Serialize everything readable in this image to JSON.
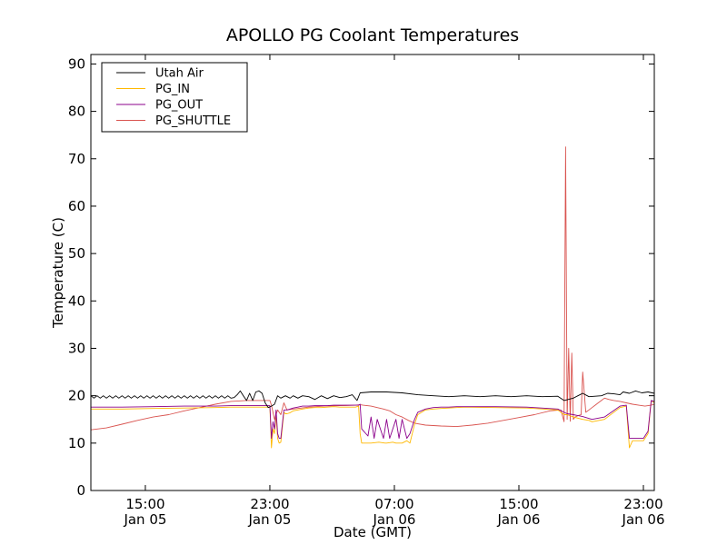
{
  "chart_data": {
    "type": "line",
    "title": "APOLLO PG Coolant Temperatures",
    "xlabel": "Date (GMT)",
    "ylabel": "Temperature (C)",
    "x_unit": "hours since Jan 05 11:30 GMT",
    "xlim": [
      0,
      36.2
    ],
    "ylim": [
      0,
      92
    ],
    "yticks": [
      0,
      10,
      20,
      30,
      40,
      50,
      60,
      70,
      80,
      90
    ],
    "xticks": [
      {
        "x": 3.5,
        "line1": "15:00",
        "line2": "Jan 05"
      },
      {
        "x": 11.5,
        "line1": "23:00",
        "line2": "Jan 05"
      },
      {
        "x": 19.5,
        "line1": "07:00",
        "line2": "Jan 06"
      },
      {
        "x": 27.5,
        "line1": "15:00",
        "line2": "Jan 06"
      },
      {
        "x": 35.5,
        "line1": "23:00",
        "line2": "Jan 06"
      }
    ],
    "legend_position": "top-left",
    "series": [
      {
        "name": "Utah Air",
        "color": "#000000",
        "x": [
          0,
          0.2,
          0.4,
          0.6,
          0.8,
          1.0,
          1.2,
          1.4,
          1.6,
          1.8,
          2.0,
          2.2,
          2.4,
          2.6,
          2.8,
          3.0,
          3.2,
          3.4,
          3.6,
          3.8,
          4.0,
          4.2,
          4.4,
          4.6,
          4.8,
          5.0,
          5.2,
          5.4,
          5.6,
          5.8,
          6.0,
          6.2,
          6.4,
          6.6,
          6.8,
          7.0,
          7.2,
          7.4,
          7.6,
          7.8,
          8.0,
          8.2,
          8.4,
          8.6,
          8.8,
          9.0,
          9.2,
          9.4,
          9.6,
          9.8,
          10.0,
          10.2,
          10.4,
          10.6,
          10.8,
          11.0,
          11.2,
          11.4,
          11.6,
          11.8,
          12.0,
          12.2,
          12.5,
          12.8,
          13.0,
          13.3,
          13.6,
          14.0,
          14.4,
          14.8,
          15.2,
          15.6,
          16.0,
          16.4,
          16.8,
          17.1,
          17.3,
          18.0,
          19.0,
          20.0,
          21.0,
          22.0,
          23.0,
          24.0,
          25.0,
          26.0,
          27.0,
          28.0,
          29.0,
          30.0,
          30.4,
          31.0,
          31.6,
          32.0,
          32.8,
          33.2,
          33.6,
          34.0,
          34.2,
          34.6,
          35.0,
          35.4,
          35.8,
          36.2
        ],
        "values": [
          20.0,
          19.5,
          20.0,
          19.5,
          20.0,
          19.5,
          20.0,
          19.5,
          20.0,
          19.5,
          20.0,
          19.5,
          20.0,
          19.5,
          20.0,
          19.5,
          20.0,
          19.5,
          20.0,
          19.5,
          20.0,
          19.5,
          20.0,
          19.5,
          20.0,
          19.5,
          20.0,
          19.5,
          20.0,
          19.5,
          20.0,
          19.5,
          20.0,
          19.5,
          20.0,
          19.5,
          20.0,
          19.5,
          20.0,
          19.5,
          20.0,
          19.5,
          20.0,
          19.5,
          20.0,
          19.5,
          19.6,
          20.2,
          21.0,
          20.0,
          19.0,
          20.5,
          19.0,
          20.8,
          21.0,
          20.5,
          18.5,
          17.5,
          17.8,
          18.2,
          20.0,
          19.5,
          20.0,
          19.5,
          20.0,
          19.5,
          20.0,
          19.8,
          19.2,
          20.0,
          19.4,
          20.0,
          19.6,
          19.8,
          20.2,
          19.0,
          20.6,
          20.8,
          20.8,
          20.6,
          20.2,
          20.0,
          19.8,
          20.0,
          19.8,
          20.0,
          19.8,
          20.0,
          19.8,
          19.9,
          19.0,
          19.5,
          20.5,
          19.8,
          20.0,
          20.5,
          20.4,
          20.2,
          20.8,
          20.5,
          21.0,
          20.6,
          20.8,
          20.5
        ]
      },
      {
        "name": "PG_IN",
        "color": "#ffb800",
        "x": [
          0,
          2,
          4,
          6,
          8,
          9,
          10,
          10.8,
          11.5,
          11.6,
          11.7,
          11.8,
          11.9,
          12.0,
          12.1,
          12.2,
          12.4,
          12.5,
          12.6,
          12.8,
          13.0,
          13.3,
          13.6,
          14.0,
          14.4,
          14.8,
          15.2,
          15.6,
          16.0,
          16.4,
          16.8,
          17.0,
          17.2,
          17.3,
          17.4,
          18.0,
          18.5,
          18.9,
          19.0,
          19.4,
          19.6,
          20.0,
          20.3,
          20.5,
          20.8,
          21.0,
          21.5,
          22.0,
          22.5,
          23.0,
          23.5,
          24.0,
          26.0,
          28.0,
          30.0,
          30.4,
          30.6,
          31.0,
          31.6,
          32.0,
          32.2,
          33.0,
          34.0,
          34.4,
          34.6,
          34.8,
          35.0,
          35.5,
          35.8,
          36.0,
          36.2
        ],
        "values": [
          17.2,
          17.2,
          17.3,
          17.4,
          17.5,
          17.6,
          17.6,
          17.6,
          17.6,
          9.0,
          13.0,
          12.0,
          16.0,
          11.0,
          10.0,
          10.2,
          16.5,
          16.2,
          16.2,
          16.4,
          16.8,
          17.0,
          17.2,
          17.4,
          17.5,
          17.5,
          17.6,
          17.7,
          17.6,
          17.6,
          17.6,
          17.6,
          17.8,
          12.0,
          10.0,
          10.0,
          10.2,
          10.0,
          10.0,
          10.2,
          10.0,
          10.0,
          10.5,
          10.0,
          14.0,
          16.0,
          17.0,
          17.2,
          17.3,
          17.4,
          17.5,
          17.6,
          17.5,
          17.4,
          17.0,
          16.0,
          16.0,
          15.5,
          15.0,
          14.8,
          14.5,
          15.0,
          17.5,
          17.8,
          9.0,
          10.5,
          10.5,
          10.5,
          12.0,
          19.0,
          18.5
        ]
      },
      {
        "name": "PG_OUT",
        "color": "#8b008b",
        "x": [
          0,
          2,
          4,
          6,
          8,
          9,
          10,
          10.8,
          11.5,
          11.6,
          11.7,
          11.8,
          11.9,
          12.0,
          12.1,
          12.2,
          12.4,
          12.6,
          12.8,
          13.0,
          13.3,
          13.6,
          14.0,
          14.4,
          14.8,
          15.2,
          15.6,
          16.0,
          16.4,
          16.8,
          17.0,
          17.2,
          17.3,
          17.4,
          17.8,
          18.0,
          18.2,
          18.4,
          18.8,
          19.0,
          19.2,
          19.6,
          19.8,
          20.0,
          20.3,
          20.5,
          20.8,
          21.0,
          21.5,
          22.0,
          22.5,
          23.0,
          23.5,
          24.0,
          26.0,
          28.0,
          30.0,
          30.4,
          30.6,
          31.0,
          31.6,
          32.0,
          32.2,
          33.0,
          34.0,
          34.4,
          34.6,
          34.8,
          35.0,
          35.5,
          35.8,
          36.0,
          36.2
        ],
        "values": [
          17.6,
          17.6,
          17.7,
          17.8,
          17.8,
          17.9,
          17.9,
          17.9,
          17.9,
          11.0,
          14.5,
          13.0,
          17.0,
          12.0,
          11.0,
          11.0,
          17.0,
          17.0,
          17.2,
          17.4,
          17.6,
          17.8,
          17.8,
          17.9,
          17.9,
          17.9,
          18.0,
          18.0,
          18.0,
          18.0,
          18.0,
          18.0,
          18.2,
          13.0,
          11.5,
          15.5,
          11.0,
          15.0,
          11.0,
          15.0,
          11.0,
          15.0,
          11.0,
          15.0,
          11.0,
          12.0,
          15.0,
          16.5,
          17.2,
          17.5,
          17.6,
          17.6,
          17.7,
          17.7,
          17.7,
          17.6,
          17.2,
          16.5,
          16.2,
          16.0,
          15.6,
          15.2,
          15.0,
          15.5,
          17.8,
          18.0,
          11.0,
          11.0,
          11.0,
          11.0,
          12.5,
          19.0,
          18.8
        ]
      },
      {
        "name": "PG_SHUTTLE",
        "color": "#d9534f",
        "x": [
          0,
          1,
          2,
          3,
          4,
          5,
          6,
          7,
          8,
          9,
          10,
          11,
          11.5,
          11.6,
          11.8,
          12.0,
          12.2,
          12.4,
          12.6,
          13.0,
          14.0,
          15.0,
          16.0,
          17.0,
          17.3,
          17.5,
          18.0,
          18.4,
          18.8,
          19.2,
          19.6,
          20.0,
          20.4,
          20.8,
          21.5,
          22.5,
          23.5,
          24.5,
          25.5,
          26.5,
          27.5,
          28.5,
          29.5,
          30.2,
          30.4,
          30.5,
          30.6,
          30.7,
          30.8,
          30.9,
          31.0,
          31.1,
          31.3,
          31.5,
          31.6,
          31.8,
          32.0,
          32.2,
          32.4,
          32.6,
          32.8,
          33.0,
          33.3,
          33.6,
          34.0,
          34.4,
          34.8,
          35.2,
          35.6,
          36.0,
          36.2
        ],
        "values": [
          12.8,
          13.2,
          14.0,
          14.8,
          15.5,
          16.0,
          16.8,
          17.5,
          18.2,
          18.8,
          19.0,
          19.0,
          19.0,
          18.0,
          15.0,
          17.0,
          16.0,
          18.5,
          17.0,
          17.2,
          17.6,
          17.8,
          17.9,
          18.0,
          18.1,
          18.0,
          17.8,
          17.5,
          17.2,
          16.8,
          16.0,
          15.5,
          14.8,
          14.2,
          13.8,
          13.6,
          13.5,
          13.8,
          14.2,
          14.8,
          15.4,
          16.0,
          16.8,
          17.0,
          14.5,
          72.5,
          15.0,
          30.0,
          14.6,
          29.0,
          15.0,
          15.5,
          15.8,
          16.0,
          25.0,
          16.5,
          17.0,
          17.5,
          18.0,
          18.5,
          19.0,
          19.5,
          19.2,
          19.0,
          18.8,
          18.5,
          18.2,
          18.0,
          17.8,
          18.0,
          18.2
        ]
      }
    ]
  }
}
